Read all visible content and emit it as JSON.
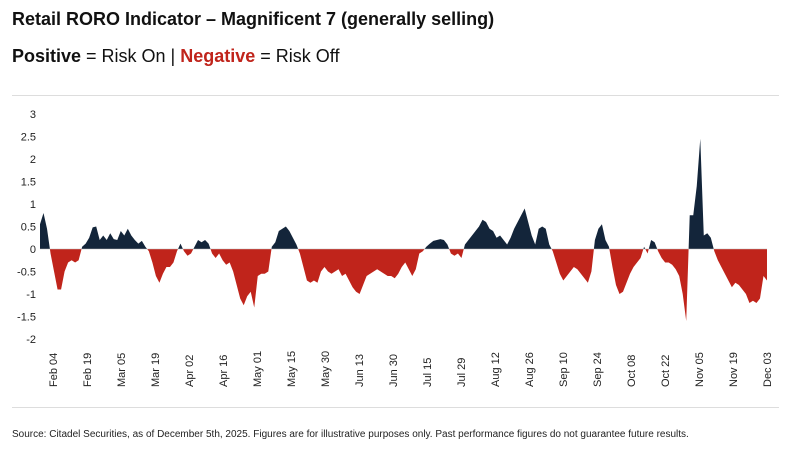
{
  "title": "Retail RORO Indicator – Magnificent 7 (generally selling)",
  "subtitle": {
    "positive": "Positive",
    "positive_meaning": " = Risk On | ",
    "negative": "Negative",
    "negative_meaning": " = Risk Off"
  },
  "source": "Source: Citadel Securities, as of December 5th, 2025. Figures are for illustrative purposes only. Past performance figures do not guarantee future results.",
  "colors": {
    "positive": "#13253a",
    "negative": "#c0241b",
    "zero_line": "#bbbbbb"
  },
  "chart_data": {
    "type": "area",
    "ylim": [
      -2,
      3
    ],
    "yticks": [
      3,
      2.5,
      2,
      1.5,
      1,
      0.5,
      0,
      -0.5,
      -1,
      -1.5,
      -2
    ],
    "ytick_labels": [
      "3",
      "2.5",
      "2",
      "1.5",
      "1",
      "0.5",
      "0",
      "-0.5",
      "-1",
      "-1.5",
      "-2"
    ],
    "xtick_labels": [
      "Feb 04",
      "Feb 19",
      "Mar 05",
      "Mar 19",
      "Apr 02",
      "Apr 16",
      "May 01",
      "May 15",
      "May 30",
      "Jun 13",
      "Jun 30",
      "Jul 15",
      "Jul 29",
      "Aug 12",
      "Aug 26",
      "Sep 10",
      "Sep 24",
      "Oct 08",
      "Oct 22",
      "Nov 05",
      "Nov 19",
      "Dec 03"
    ],
    "grid": false,
    "values": [
      0.55,
      0.8,
      0.45,
      -0.1,
      -0.5,
      -0.9,
      -0.9,
      -0.5,
      -0.3,
      -0.25,
      -0.3,
      -0.25,
      0.05,
      0.12,
      0.25,
      0.48,
      0.5,
      0.2,
      0.3,
      0.2,
      0.35,
      0.22,
      0.2,
      0.4,
      0.3,
      0.45,
      0.3,
      0.2,
      0.12,
      0.18,
      0.05,
      -0.05,
      -0.3,
      -0.6,
      -0.75,
      -0.55,
      -0.4,
      -0.4,
      -0.3,
      -0.05,
      0.12,
      -0.05,
      -0.15,
      -0.1,
      0.05,
      0.2,
      0.15,
      0.2,
      0.12,
      -0.1,
      -0.2,
      -0.1,
      -0.25,
      -0.35,
      -0.3,
      -0.5,
      -0.8,
      -1.1,
      -1.25,
      -1.05,
      -0.95,
      -1.3,
      -0.6,
      -0.55,
      -0.55,
      -0.5,
      0.05,
      0.15,
      0.4,
      0.45,
      0.5,
      0.4,
      0.25,
      0.1,
      -0.1,
      -0.4,
      -0.7,
      -0.75,
      -0.7,
      -0.75,
      -0.5,
      -0.4,
      -0.5,
      -0.55,
      -0.5,
      -0.45,
      -0.6,
      -0.55,
      -0.7,
      -0.85,
      -0.95,
      -1.0,
      -0.8,
      -0.6,
      -0.55,
      -0.5,
      -0.45,
      -0.5,
      -0.55,
      -0.6,
      -0.6,
      -0.65,
      -0.55,
      -0.4,
      -0.3,
      -0.45,
      -0.6,
      -0.45,
      -0.1,
      -0.05,
      0.05,
      0.12,
      0.18,
      0.2,
      0.22,
      0.2,
      0.1,
      -0.1,
      -0.15,
      -0.1,
      -0.2,
      0.1,
      0.2,
      0.3,
      0.4,
      0.5,
      0.65,
      0.6,
      0.45,
      0.4,
      0.25,
      0.3,
      0.2,
      0.1,
      0.25,
      0.45,
      0.6,
      0.75,
      0.9,
      0.6,
      0.3,
      0.1,
      0.45,
      0.5,
      0.45,
      0.1,
      -0.05,
      -0.3,
      -0.55,
      -0.7,
      -0.6,
      -0.5,
      -0.4,
      -0.45,
      -0.55,
      -0.65,
      -0.75,
      -0.5,
      0.2,
      0.45,
      0.55,
      0.2,
      0.05,
      -0.4,
      -0.8,
      -1.0,
      -0.95,
      -0.75,
      -0.55,
      -0.4,
      -0.3,
      -0.2,
      0.05,
      -0.1,
      0.2,
      0.15,
      -0.05,
      -0.2,
      -0.3,
      -0.3,
      -0.35,
      -0.45,
      -0.6,
      -1.0,
      -1.6,
      0.75,
      0.75,
      1.4,
      2.45,
      0.3,
      0.35,
      0.25,
      -0.05,
      -0.25,
      -0.4,
      -0.55,
      -0.7,
      -0.85,
      -0.75,
      -0.8,
      -0.9,
      -1.0,
      -1.2,
      -1.15,
      -1.2,
      -1.1,
      -0.6,
      -0.7
    ]
  }
}
